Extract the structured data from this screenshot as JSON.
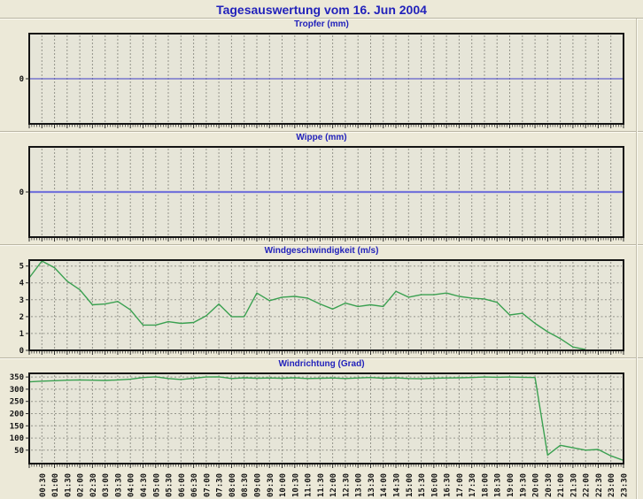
{
  "page": {
    "title": "Tagesauswertung vom 16. Jun 2004"
  },
  "colors": {
    "page_bg": "#ece9d8",
    "plot_bg": "#e6e5d8",
    "frame": "#141414",
    "grid": "#94948a",
    "title_text": "#2222bb",
    "tick_text": "#141414",
    "tick_mark": "#2a2a2a",
    "tropfer_line": "#3d3dc8",
    "wippe_line": "#7474da",
    "wind_line": "#3aa050"
  },
  "x_axis": {
    "start": "00:00",
    "end": "23:30",
    "interval_minutes": 30,
    "tick_labels": [
      "00:30",
      "01:00",
      "01:30",
      "02:00",
      "02:30",
      "03:00",
      "03:30",
      "04:00",
      "04:30",
      "05:00",
      "05:30",
      "06:00",
      "06:30",
      "07:00",
      "07:30",
      "08:00",
      "08:30",
      "09:00",
      "09:30",
      "10:00",
      "10:30",
      "11:00",
      "11:30",
      "12:00",
      "12:30",
      "13:00",
      "13:30",
      "14:00",
      "14:30",
      "15:00",
      "15:30",
      "16:00",
      "16:30",
      "17:00",
      "17:30",
      "18:00",
      "18:30",
      "19:00",
      "19:30",
      "20:00",
      "20:30",
      "21:00",
      "21:30",
      "22:00",
      "22:30",
      "23:00",
      "23:30"
    ]
  },
  "chart_data": [
    {
      "type": "line",
      "title": "Tropfer (mm)",
      "ylabel": "mm",
      "yticks": [
        0
      ],
      "grid_yticks": [],
      "ylim": [
        -1,
        1
      ],
      "constant_value": 0,
      "line_color": "#3d3dc8",
      "line_width": 1
    },
    {
      "type": "line",
      "title": "Wippe (mm)",
      "ylabel": "mm",
      "yticks": [
        0
      ],
      "grid_yticks": [],
      "ylim": [
        -1,
        1
      ],
      "constant_value": 0,
      "line_color": "#7474da",
      "line_width": 2.2
    },
    {
      "type": "line",
      "title": "Windgeschwindigkeit (m/s)",
      "ylabel": "m/s",
      "yticks": [
        0,
        1,
        2,
        3,
        4,
        5
      ],
      "grid_yticks": [
        1,
        2,
        3,
        4,
        5
      ],
      "ylim": [
        0,
        5.35
      ],
      "x": [
        "00:00",
        "00:30",
        "01:00",
        "01:30",
        "02:00",
        "02:30",
        "03:00",
        "03:30",
        "04:00",
        "04:30",
        "05:00",
        "05:30",
        "06:00",
        "06:30",
        "07:00",
        "07:30",
        "08:00",
        "08:30",
        "09:00",
        "09:30",
        "10:00",
        "10:30",
        "11:00",
        "11:30",
        "12:00",
        "12:30",
        "13:00",
        "13:30",
        "14:00",
        "14:30",
        "15:00",
        "15:30",
        "16:00",
        "16:30",
        "17:00",
        "17:30",
        "18:00",
        "18:30",
        "19:00",
        "19:30",
        "20:00",
        "20:30",
        "21:00",
        "21:30",
        "22:00",
        "22:30",
        "23:00",
        "23:30"
      ],
      "values": [
        4.3,
        5.3,
        4.9,
        4.1,
        3.6,
        2.7,
        2.75,
        2.9,
        2.4,
        1.5,
        1.5,
        1.7,
        1.6,
        1.65,
        2.05,
        2.75,
        2.0,
        2.0,
        3.4,
        2.95,
        3.15,
        3.2,
        3.1,
        2.75,
        2.45,
        2.8,
        2.6,
        2.7,
        2.6,
        3.5,
        3.15,
        3.3,
        3.3,
        3.4,
        3.2,
        3.1,
        3.05,
        2.85,
        2.1,
        2.2,
        1.6,
        1.1,
        0.7,
        0.2,
        0.0,
        null,
        null,
        null
      ],
      "line_color": "#3aa050",
      "line_width": 1.4
    },
    {
      "type": "line",
      "title": "Windrichtung (Grad)",
      "ylabel": "Grad",
      "yticks": [
        50,
        100,
        150,
        200,
        250,
        300,
        350
      ],
      "grid_yticks": [
        50,
        100,
        150,
        200,
        250,
        300,
        350
      ],
      "ylim": [
        -5,
        365
      ],
      "x": [
        "00:00",
        "00:30",
        "01:00",
        "01:30",
        "02:00",
        "02:30",
        "03:00",
        "03:30",
        "04:00",
        "04:30",
        "05:00",
        "05:30",
        "06:00",
        "06:30",
        "07:00",
        "07:30",
        "08:00",
        "08:30",
        "09:00",
        "09:30",
        "10:00",
        "10:30",
        "11:00",
        "11:30",
        "12:00",
        "12:30",
        "13:00",
        "13:30",
        "14:00",
        "14:30",
        "15:00",
        "15:30",
        "16:00",
        "16:30",
        "17:00",
        "17:30",
        "18:00",
        "18:30",
        "19:00",
        "19:30",
        "20:00",
        "20:30",
        "21:00",
        "21:30",
        "22:00",
        "22:30",
        "23:00",
        "23:30"
      ],
      "values": [
        330,
        333,
        335,
        337,
        338,
        337,
        336,
        338,
        341,
        348,
        351,
        344,
        340,
        345,
        350,
        351,
        344,
        347,
        345,
        346,
        345,
        347,
        344,
        345,
        346,
        344,
        346,
        348,
        345,
        347,
        344,
        343,
        345,
        346,
        347,
        348,
        350,
        349,
        350,
        349,
        348,
        30,
        70,
        60,
        50,
        53,
        27,
        8
      ],
      "line_color": "#3aa050",
      "line_width": 1.4
    }
  ]
}
